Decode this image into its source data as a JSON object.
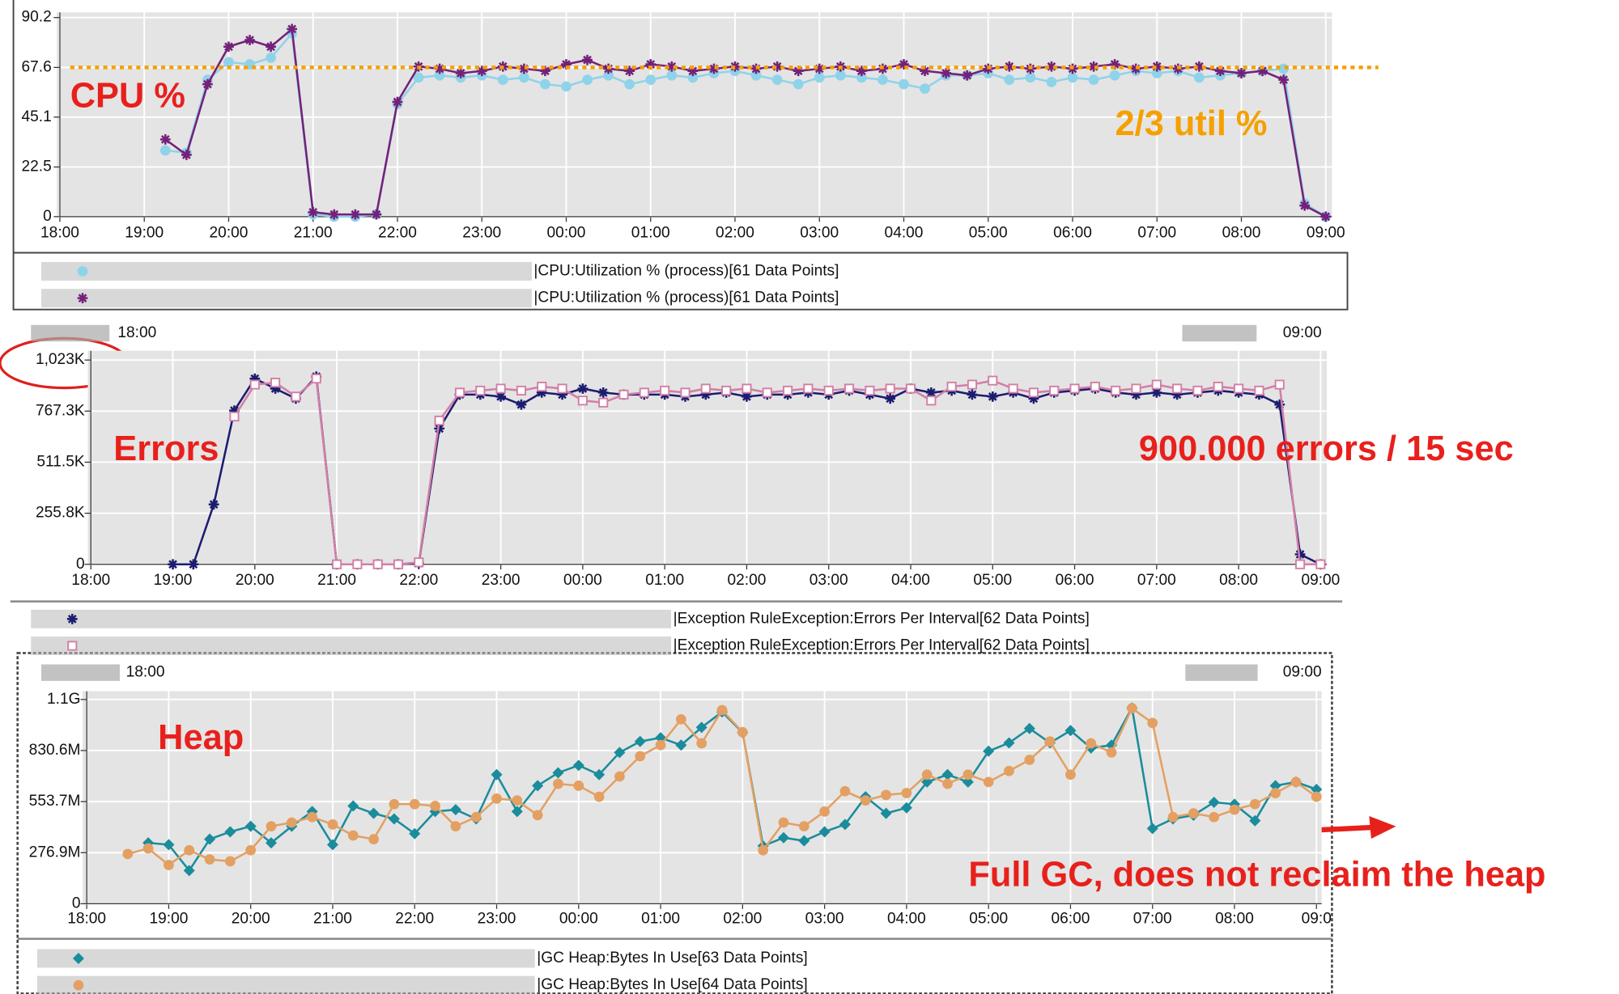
{
  "chart_data": [
    {
      "type": "line",
      "title": "CPU %",
      "grid": true,
      "xlim": [
        "18:00",
        "09:00"
      ],
      "xticks": [
        "18:00",
        "19:00",
        "20:00",
        "21:00",
        "22:00",
        "23:00",
        "00:00",
        "01:00",
        "02:00",
        "03:00",
        "04:00",
        "05:00",
        "06:00",
        "07:00",
        "08:00",
        "09:00"
      ],
      "ylim": [
        0,
        90.2
      ],
      "yticks": [
        0,
        22.5,
        45.1,
        67.6,
        90.2
      ],
      "reference_line": {
        "value": 67.6,
        "label": "2/3 util %",
        "color": "#f5a000"
      },
      "x": [
        "19:15",
        "19:30",
        "19:45",
        "20:00",
        "20:15",
        "20:30",
        "20:45",
        "21:00",
        "21:15",
        "21:30",
        "21:45",
        "22:00",
        "22:15",
        "22:30",
        "22:45",
        "23:00",
        "23:15",
        "23:30",
        "23:45",
        "00:00",
        "00:15",
        "00:30",
        "00:45",
        "01:00",
        "01:15",
        "01:30",
        "01:45",
        "02:00",
        "02:15",
        "02:30",
        "02:45",
        "03:00",
        "03:15",
        "03:30",
        "03:45",
        "04:00",
        "04:15",
        "04:30",
        "04:45",
        "05:00",
        "05:15",
        "05:30",
        "05:45",
        "06:00",
        "06:15",
        "06:30",
        "06:45",
        "07:00",
        "07:15",
        "07:30",
        "07:45",
        "08:00",
        "08:15",
        "08:30",
        "08:45",
        "09:00"
      ],
      "series": [
        {
          "name": "|CPU:Utilization % (process)[61 Data Points]",
          "color": "#8fd3ea",
          "marker": "circle",
          "values": [
            30,
            29,
            62,
            70,
            69,
            72,
            83,
            1,
            0,
            0,
            1,
            51,
            63,
            64,
            63,
            64,
            62,
            63,
            60,
            59,
            62,
            64,
            60,
            62,
            64,
            63,
            65,
            66,
            64,
            62,
            60,
            63,
            64,
            63,
            62,
            60,
            58,
            64,
            64,
            65,
            62,
            63,
            61,
            63,
            62,
            64,
            66,
            65,
            66,
            63,
            64,
            65,
            66,
            67,
            6,
            0
          ]
        },
        {
          "name": "|CPU:Utilization % (process)[61 Data Points]",
          "color": "#74217a",
          "marker": "star",
          "values": [
            35,
            28,
            60,
            77,
            80,
            77,
            85,
            2,
            1,
            1,
            1,
            52,
            68,
            67,
            65,
            66,
            68,
            67,
            66,
            69,
            71,
            67,
            66,
            69,
            68,
            66,
            67,
            68,
            67,
            68,
            66,
            67,
            68,
            66,
            67,
            69,
            66,
            65,
            64,
            67,
            68,
            67,
            68,
            67,
            68,
            69,
            67,
            68,
            67,
            68,
            66,
            65,
            66,
            62,
            5,
            0
          ]
        }
      ]
    },
    {
      "type": "line",
      "title": "Errors",
      "subtitle": "900.000 errors / 15 sec",
      "grid": true,
      "header_left": "18:00",
      "header_right": "09:00",
      "xlim": [
        "18:00",
        "09:00"
      ],
      "xticks": [
        "18:00",
        "19:00",
        "20:00",
        "21:00",
        "22:00",
        "23:00",
        "00:00",
        "01:00",
        "02:00",
        "03:00",
        "04:00",
        "05:00",
        "06:00",
        "07:00",
        "08:00",
        "09:00"
      ],
      "ylim": [
        0,
        1023
      ],
      "yticks": [
        0,
        {
          "value": 255.8,
          "label": "255.8K"
        },
        {
          "value": 511.5,
          "label": "511.5K"
        },
        {
          "value": 767.3,
          "label": "767.3K"
        },
        {
          "value": 1023,
          "label": "1,023K"
        }
      ],
      "x": [
        "19:00",
        "19:15",
        "19:30",
        "19:45",
        "20:00",
        "20:15",
        "20:30",
        "20:45",
        "21:00",
        "21:15",
        "21:30",
        "21:45",
        "22:00",
        "22:15",
        "22:30",
        "22:45",
        "23:00",
        "23:15",
        "23:30",
        "23:45",
        "00:00",
        "00:15",
        "00:30",
        "00:45",
        "01:00",
        "01:15",
        "01:30",
        "01:45",
        "02:00",
        "02:15",
        "02:30",
        "02:45",
        "03:00",
        "03:15",
        "03:30",
        "03:45",
        "04:00",
        "04:15",
        "04:30",
        "04:45",
        "05:00",
        "05:15",
        "05:30",
        "05:45",
        "06:00",
        "06:15",
        "06:30",
        "06:45",
        "07:00",
        "07:15",
        "07:30",
        "07:45",
        "08:00",
        "08:15",
        "08:30",
        "08:45",
        "09:00"
      ],
      "series": [
        {
          "name": "|Exception RuleException:Errors Per Interval[62 Data Points]",
          "color": "#1c1c70",
          "marker": "star",
          "values": [
            0,
            0,
            300,
            770,
            930,
            880,
            830,
            940,
            0,
            0,
            0,
            0,
            5,
            680,
            850,
            850,
            840,
            800,
            860,
            850,
            880,
            860,
            850,
            850,
            850,
            840,
            850,
            860,
            840,
            850,
            850,
            860,
            850,
            870,
            850,
            830,
            880,
            860,
            870,
            850,
            840,
            860,
            830,
            860,
            870,
            880,
            860,
            850,
            860,
            850,
            860,
            870,
            860,
            850,
            800,
            50,
            0
          ]
        },
        {
          "name": "|Exception RuleException:Errors Per Interval[62 Data Points]",
          "color": "#d27fa6",
          "marker": "square",
          "values": [
            null,
            null,
            null,
            740,
            900,
            910,
            840,
            930,
            0,
            0,
            0,
            0,
            10,
            720,
            860,
            870,
            880,
            870,
            890,
            880,
            820,
            810,
            850,
            860,
            870,
            860,
            880,
            870,
            880,
            860,
            870,
            880,
            870,
            880,
            870,
            880,
            880,
            820,
            890,
            900,
            920,
            880,
            860,
            870,
            880,
            890,
            870,
            880,
            900,
            880,
            870,
            890,
            880,
            870,
            900,
            0,
            0
          ]
        }
      ]
    },
    {
      "type": "line",
      "title": "Heap",
      "subtitle": "Full GC, does not reclaim the heap",
      "grid": true,
      "header_left": "18:00",
      "header_right": "09:00",
      "xlim": [
        "18:00",
        "09:00"
      ],
      "xticks": [
        "18:00",
        "19:00",
        "20:00",
        "21:00",
        "22:00",
        "23:00",
        "00:00",
        "01:00",
        "02:00",
        "03:00",
        "04:00",
        "05:00",
        "06:00",
        "07:00",
        "08:00",
        "09:0"
      ],
      "ylim": [
        0,
        1107.5
      ],
      "yticks": [
        0,
        {
          "value": 276.9,
          "label": "276.9M"
        },
        {
          "value": 553.7,
          "label": "553.7M"
        },
        {
          "value": 830.6,
          "label": "830.6M"
        },
        {
          "value": 1107.5,
          "label": "1.1G"
        }
      ],
      "x": [
        "18:30",
        "18:45",
        "19:00",
        "19:15",
        "19:30",
        "19:45",
        "20:00",
        "20:15",
        "20:30",
        "20:45",
        "21:00",
        "21:15",
        "21:30",
        "21:45",
        "22:00",
        "22:15",
        "22:30",
        "22:45",
        "23:00",
        "23:15",
        "23:30",
        "23:45",
        "00:00",
        "00:15",
        "00:30",
        "00:45",
        "01:00",
        "01:15",
        "01:30",
        "01:45",
        "02:00",
        "02:15",
        "02:30",
        "02:45",
        "03:00",
        "03:15",
        "03:30",
        "03:45",
        "04:00",
        "04:15",
        "04:30",
        "04:45",
        "05:00",
        "05:15",
        "05:30",
        "05:45",
        "06:00",
        "06:15",
        "06:30",
        "06:45",
        "07:00",
        "07:15",
        "07:30",
        "07:45",
        "08:00",
        "08:15",
        "08:30",
        "08:45",
        "09:00"
      ],
      "series": [
        {
          "name": "|GC Heap:Bytes In Use[63 Data Points]",
          "color": "#1a8c9c",
          "marker": "diamond",
          "values": [
            null,
            330,
            320,
            180,
            350,
            390,
            420,
            330,
            420,
            500,
            320,
            530,
            490,
            460,
            380,
            500,
            510,
            460,
            700,
            500,
            640,
            710,
            750,
            700,
            820,
            880,
            900,
            860,
            956,
            1040,
            928,
            313,
            358,
            341,
            390,
            430,
            580,
            490,
            520,
            660,
            700,
            660,
            827,
            872,
            950,
            872,
            939,
            844,
            860,
            1062,
            408,
            460,
            480,
            550,
            540,
            450,
            640,
            660,
            620
          ]
        },
        {
          "name": "|GC Heap:Bytes In Use[64 Data Points]",
          "color": "#e3a062",
          "marker": "circle",
          "values": [
            270,
            300,
            210,
            290,
            240,
            230,
            290,
            420,
            440,
            470,
            430,
            370,
            350,
            540,
            540,
            530,
            420,
            470,
            570,
            560,
            480,
            650,
            640,
            580,
            690,
            800,
            860,
            1000,
            870,
            1050,
            930,
            290,
            440,
            420,
            500,
            610,
            560,
            590,
            600,
            700,
            650,
            700,
            660,
            720,
            780,
            880,
            700,
            870,
            820,
            1060,
            980,
            470,
            490,
            470,
            510,
            540,
            600,
            660,
            580
          ]
        }
      ]
    }
  ]
}
